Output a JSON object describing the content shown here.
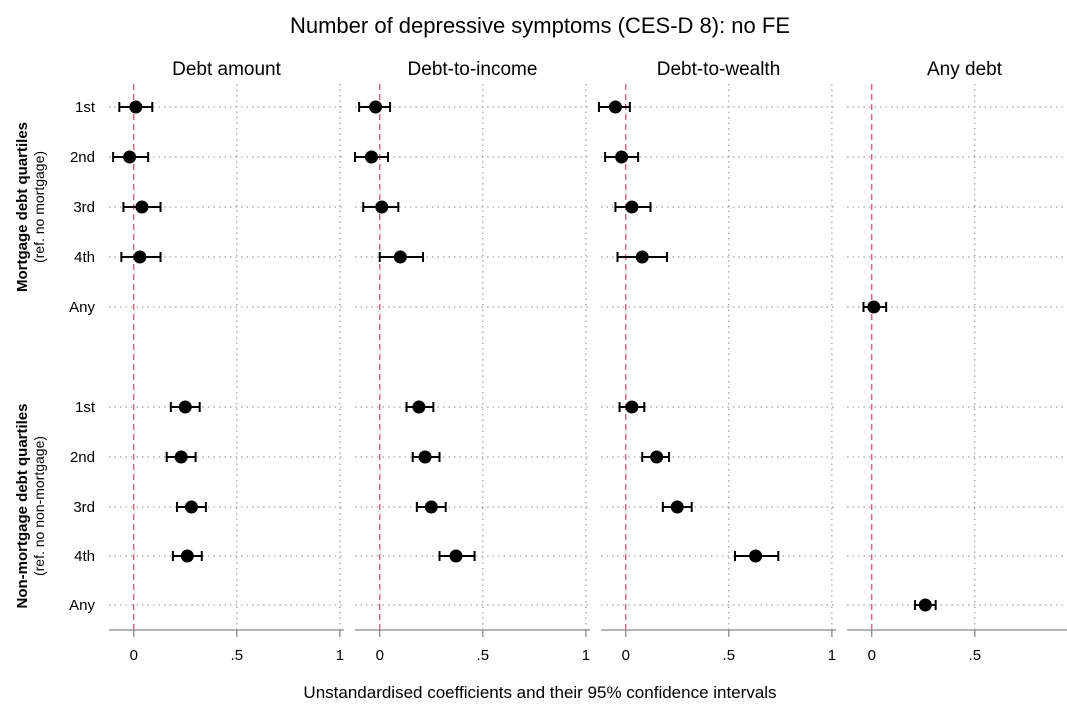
{
  "chart_data": {
    "type": "scatter",
    "title": "Number of depressive symptoms (CES-D 8): no FE",
    "xlabel": "Unstandardised coefficients and their 95% confidence intervals",
    "xlim": [
      -0.12,
      1.02
    ],
    "xticks": [
      "0",
      ".5",
      "1"
    ],
    "xtick_values": [
      0,
      0.5,
      1
    ],
    "reference_line": 0,
    "grid": true,
    "groups": [
      {
        "title": "Mortgage debt quartiles",
        "subtitle": "(ref. no mortgage)",
        "rows": [
          "1st",
          "2nd",
          "3rd",
          "4th",
          "Any"
        ]
      },
      {
        "title": "Non-mortgage debt quartiles",
        "subtitle": "(ref. no non-mortgage)",
        "rows": [
          "1st",
          "2nd",
          "3rd",
          "4th",
          "Any"
        ]
      }
    ],
    "panels": [
      {
        "title": "Debt amount",
        "points": [
          {
            "group": 0,
            "row": 0,
            "est": 0.01,
            "lo": -0.07,
            "hi": 0.09
          },
          {
            "group": 0,
            "row": 1,
            "est": -0.02,
            "lo": -0.1,
            "hi": 0.07
          },
          {
            "group": 0,
            "row": 2,
            "est": 0.04,
            "lo": -0.05,
            "hi": 0.13
          },
          {
            "group": 0,
            "row": 3,
            "est": 0.03,
            "lo": -0.06,
            "hi": 0.13
          },
          {
            "group": 1,
            "row": 0,
            "est": 0.25,
            "lo": 0.18,
            "hi": 0.32
          },
          {
            "group": 1,
            "row": 1,
            "est": 0.23,
            "lo": 0.16,
            "hi": 0.3
          },
          {
            "group": 1,
            "row": 2,
            "est": 0.28,
            "lo": 0.21,
            "hi": 0.35
          },
          {
            "group": 1,
            "row": 3,
            "est": 0.26,
            "lo": 0.19,
            "hi": 0.33
          }
        ]
      },
      {
        "title": "Debt-to-income",
        "points": [
          {
            "group": 0,
            "row": 0,
            "est": -0.02,
            "lo": -0.1,
            "hi": 0.05
          },
          {
            "group": 0,
            "row": 1,
            "est": -0.04,
            "lo": -0.12,
            "hi": 0.04
          },
          {
            "group": 0,
            "row": 2,
            "est": 0.01,
            "lo": -0.08,
            "hi": 0.09
          },
          {
            "group": 0,
            "row": 3,
            "est": 0.1,
            "lo": 0.0,
            "hi": 0.21
          },
          {
            "group": 1,
            "row": 0,
            "est": 0.19,
            "lo": 0.13,
            "hi": 0.26
          },
          {
            "group": 1,
            "row": 1,
            "est": 0.22,
            "lo": 0.16,
            "hi": 0.29
          },
          {
            "group": 1,
            "row": 2,
            "est": 0.25,
            "lo": 0.18,
            "hi": 0.32
          },
          {
            "group": 1,
            "row": 3,
            "est": 0.37,
            "lo": 0.29,
            "hi": 0.46
          }
        ]
      },
      {
        "title": "Debt-to-wealth",
        "points": [
          {
            "group": 0,
            "row": 0,
            "est": -0.05,
            "lo": -0.13,
            "hi": 0.02
          },
          {
            "group": 0,
            "row": 1,
            "est": -0.02,
            "lo": -0.1,
            "hi": 0.06
          },
          {
            "group": 0,
            "row": 2,
            "est": 0.03,
            "lo": -0.05,
            "hi": 0.12
          },
          {
            "group": 0,
            "row": 3,
            "est": 0.08,
            "lo": -0.04,
            "hi": 0.2
          },
          {
            "group": 1,
            "row": 0,
            "est": 0.03,
            "lo": -0.03,
            "hi": 0.09
          },
          {
            "group": 1,
            "row": 1,
            "est": 0.15,
            "lo": 0.08,
            "hi": 0.21
          },
          {
            "group": 1,
            "row": 2,
            "est": 0.25,
            "lo": 0.18,
            "hi": 0.32
          },
          {
            "group": 1,
            "row": 3,
            "est": 0.63,
            "lo": 0.53,
            "hi": 0.74
          }
        ]
      },
      {
        "title": "Any debt",
        "points": [
          {
            "group": 0,
            "row": 4,
            "est": 0.01,
            "lo": -0.04,
            "hi": 0.07
          },
          {
            "group": 1,
            "row": 4,
            "est": 0.26,
            "lo": 0.21,
            "hi": 0.31
          }
        ]
      }
    ]
  }
}
